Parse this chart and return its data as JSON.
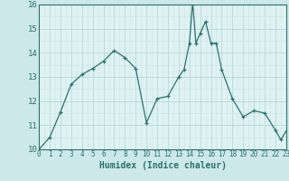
{
  "title": "",
  "xlabel": "Humidex (Indice chaleur)",
  "ylabel": "",
  "background_color": "#cce8e8",
  "plot_bg_color": "#dff2f2",
  "grid_major_color": "#b8d8d8",
  "grid_minor_color": "#cce4e4",
  "line_color": "#2d7070",
  "marker": "+",
  "xlim": [
    0,
    23
  ],
  "ylim": [
    10,
    16
  ],
  "x": [
    0,
    1,
    2,
    3,
    4,
    5,
    6,
    7,
    8,
    9,
    10,
    11,
    12,
    13,
    13.5,
    14,
    14.3,
    14.6,
    15,
    15.5,
    16,
    16.5,
    17,
    18,
    19,
    20,
    21,
    22,
    22.5,
    23
  ],
  "y": [
    10.0,
    10.5,
    11.55,
    12.7,
    13.1,
    13.35,
    13.65,
    14.1,
    13.8,
    13.35,
    11.1,
    12.1,
    12.2,
    13.0,
    13.3,
    14.4,
    16.1,
    14.4,
    14.8,
    15.3,
    14.4,
    14.4,
    13.3,
    12.1,
    11.35,
    11.6,
    11.5,
    10.8,
    10.4,
    10.75
  ],
  "xticks": [
    0,
    1,
    2,
    3,
    4,
    5,
    6,
    7,
    8,
    9,
    10,
    11,
    12,
    13,
    14,
    15,
    16,
    17,
    18,
    19,
    20,
    21,
    22,
    23
  ],
  "yticks": [
    10,
    11,
    12,
    13,
    14,
    15,
    16
  ],
  "xlabel_fontsize": 7,
  "tick_fontsize": 5.5,
  "ytick_fontsize": 6.5
}
